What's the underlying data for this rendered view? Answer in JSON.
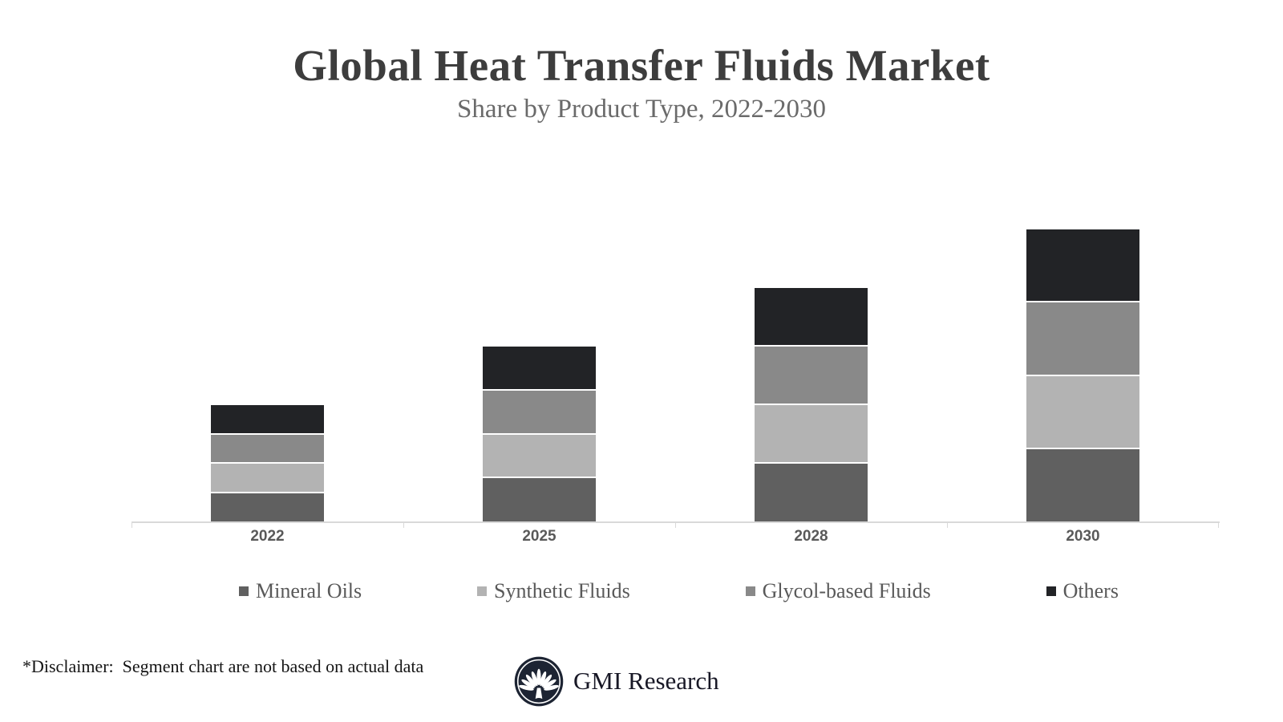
{
  "title": "Global Heat Transfer Fluids Market",
  "subtitle": "Share by Product Type, 2022-2030",
  "footer": {
    "disclaimer": "*Disclaimer:  Segment chart are not based on actual data",
    "brand": "GMI Research"
  },
  "colors": {
    "mineral_oils": "#606060",
    "synthetic_fluids": "#b3b3b3",
    "glycol_based_fluids": "#898989",
    "others": "#222326",
    "axis": "#d9d9d9",
    "logo_navy": "#1d2433"
  },
  "chart_data": {
    "type": "bar",
    "variant": "stacked",
    "title": "Global Heat Transfer Fluids Market",
    "subtitle": "Share by Product Type, 2022-2030",
    "categories": [
      "2022",
      "2025",
      "2028",
      "2030"
    ],
    "series": [
      {
        "name": "Mineral Oils",
        "color": "#606060",
        "values": [
          0.5,
          0.75,
          1.0,
          1.25
        ]
      },
      {
        "name": "Synthetic Fluids",
        "color": "#b3b3b3",
        "values": [
          0.5,
          0.75,
          1.0,
          1.25
        ]
      },
      {
        "name": "Glycol-based Fluids",
        "color": "#898989",
        "values": [
          0.5,
          0.75,
          1.0,
          1.25
        ]
      },
      {
        "name": "Others",
        "color": "#222326",
        "values": [
          0.5,
          0.75,
          1.0,
          1.25
        ]
      }
    ],
    "stack_order_bottom_to_top": [
      "Mineral Oils",
      "Synthetic Fluids",
      "Glycol-based Fluids",
      "Others"
    ],
    "totals": [
      2.0,
      3.0,
      4.0,
      5.0
    ],
    "units": "illustrative relative share (chart not based on actual data)",
    "xlabel": "",
    "ylabel": "",
    "ylim": [
      0,
      5.5
    ],
    "grid": false,
    "y_axis_visible": false,
    "legend_position": "bottom",
    "legend": [
      "Mineral Oils",
      "Synthetic Fluids",
      "Glycol-based Fluids",
      "Others"
    ]
  }
}
